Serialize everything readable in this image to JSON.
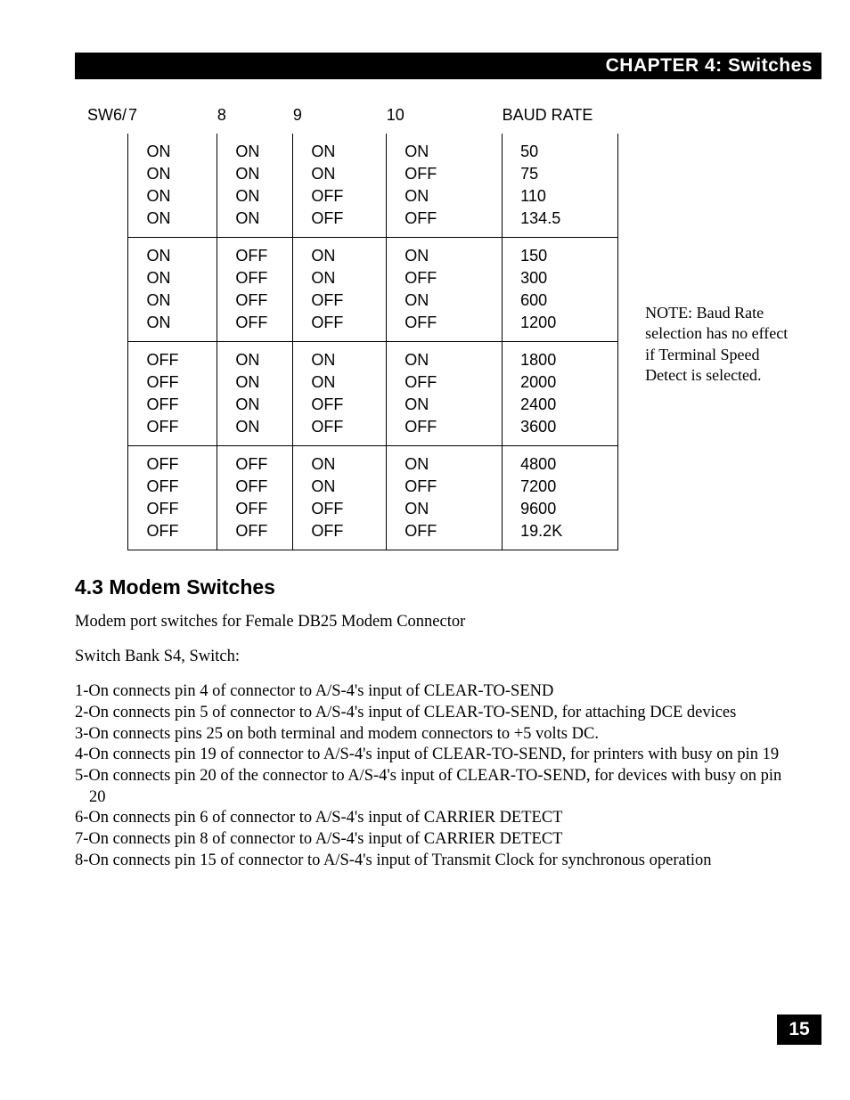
{
  "header": {
    "title": "CHAPTER 4: Switches"
  },
  "table": {
    "prefix": "SW6/",
    "headers": [
      "7",
      "8",
      "9",
      "10",
      "BAUD RATE"
    ],
    "groups": [
      [
        {
          "cols": [
            "ON",
            "ON",
            "ON",
            "ON",
            "50"
          ]
        },
        {
          "cols": [
            "ON",
            "ON",
            "ON",
            "OFF",
            "75"
          ]
        },
        {
          "cols": [
            "ON",
            "ON",
            "OFF",
            "ON",
            "110"
          ]
        },
        {
          "cols": [
            "ON",
            "ON",
            "OFF",
            "OFF",
            "134.5"
          ]
        }
      ],
      [
        {
          "cols": [
            "ON",
            "OFF",
            "ON",
            "ON",
            "150"
          ]
        },
        {
          "cols": [
            "ON",
            "OFF",
            "ON",
            "OFF",
            "300"
          ]
        },
        {
          "cols": [
            "ON",
            "OFF",
            "OFF",
            "ON",
            "600"
          ]
        },
        {
          "cols": [
            "ON",
            "OFF",
            "OFF",
            "OFF",
            "1200"
          ]
        }
      ],
      [
        {
          "cols": [
            "OFF",
            "ON",
            "ON",
            "ON",
            "1800"
          ]
        },
        {
          "cols": [
            "OFF",
            "ON",
            "ON",
            "OFF",
            "2000"
          ]
        },
        {
          "cols": [
            "OFF",
            "ON",
            "OFF",
            "ON",
            "2400"
          ]
        },
        {
          "cols": [
            "OFF",
            "ON",
            "OFF",
            "OFF",
            "3600"
          ]
        }
      ],
      [
        {
          "cols": [
            "OFF",
            "OFF",
            "ON",
            "ON",
            "4800"
          ]
        },
        {
          "cols": [
            "OFF",
            "OFF",
            "ON",
            "OFF",
            "7200"
          ]
        },
        {
          "cols": [
            "OFF",
            "OFF",
            "OFF",
            "ON",
            "9600"
          ]
        },
        {
          "cols": [
            "OFF",
            "OFF",
            "OFF",
            "OFF",
            "19.2K"
          ]
        }
      ]
    ]
  },
  "note": "NOTE:  Baud Rate selection has no effect if Terminal Speed Detect is selected.",
  "section": {
    "heading": "4.3  Modem Switches",
    "intro": "Modem port switches for Female DB25 Modem Connector",
    "bank": "Switch Bank S4, Switch:",
    "items": [
      "1-On connects pin 4 of connector to A/S-4's input of CLEAR-TO-SEND",
      "2-On connects pin 5 of connector to A/S-4's input of CLEAR-TO-SEND, for attaching DCE devices",
      "3-On connects pins 25 on both terminal and modem connectors to +5 volts DC.",
      "4-On connects pin 19 of connector to A/S-4's input of CLEAR-TO-SEND, for printers with busy on pin 19",
      "5-On connects pin 20 of the connector to A/S-4's input of CLEAR-TO-SEND, for devices with busy on pin 20",
      "6-On connects pin 6 of connector to A/S-4's input of CARRIER DETECT",
      "7-On connects pin 8 of connector to A/S-4's input of CARRIER DETECT",
      "8-On connects pin 15 of connector to A/S-4's input of Transmit Clock for synchronous operation"
    ]
  },
  "page_number": "15"
}
